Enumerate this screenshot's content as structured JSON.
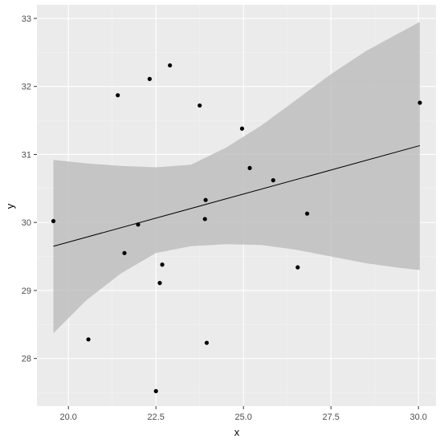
{
  "chart_data": {
    "type": "scatter",
    "title": "",
    "xlabel": "x",
    "ylabel": "y",
    "xlim": [
      19.1,
      30.5
    ],
    "ylim": [
      27.3,
      33.2
    ],
    "grid": true,
    "x_ticks": [
      20.0,
      22.5,
      25.0,
      27.5,
      30.0
    ],
    "x_tick_labels": [
      "20.0",
      "22.5",
      "25.0",
      "27.5",
      "30.0"
    ],
    "y_ticks": [
      28,
      29,
      30,
      31,
      32,
      33
    ],
    "y_tick_labels": [
      "28",
      "29",
      "30",
      "31",
      "32",
      "33"
    ],
    "points": {
      "x": [
        19.57,
        20.57,
        21.41,
        21.6,
        21.99,
        22.32,
        22.61,
        22.68,
        22.9,
        22.5,
        23.75,
        23.9,
        23.92,
        23.95,
        24.96,
        25.18,
        25.85,
        26.55,
        26.82,
        30.04
      ],
      "y": [
        30.02,
        28.28,
        31.87,
        29.55,
        29.97,
        32.11,
        29.11,
        29.38,
        32.31,
        27.52,
        31.72,
        30.05,
        30.33,
        28.23,
        31.38,
        30.8,
        30.62,
        29.34,
        30.13,
        31.76
      ]
    },
    "fit": {
      "x": [
        19.57,
        30.04
      ],
      "y": [
        29.65,
        31.13
      ]
    },
    "confidence_band": {
      "x": [
        19.57,
        20.5,
        21.5,
        22.5,
        23.5,
        24.5,
        25.5,
        26.5,
        27.5,
        28.5,
        29.5,
        30.04
      ],
      "lower": [
        28.37,
        28.85,
        29.25,
        29.55,
        29.65,
        29.68,
        29.67,
        29.6,
        29.5,
        29.4,
        29.33,
        29.3
      ],
      "upper": [
        30.92,
        30.87,
        30.83,
        30.81,
        30.85,
        31.1,
        31.42,
        31.8,
        32.18,
        32.52,
        32.8,
        32.95
      ]
    },
    "colors": {
      "panel": "#ebebeb",
      "grid_major": "#ffffff",
      "grid_minor": "#f4f4f4",
      "band": "#bebebe",
      "point": "#000000",
      "line": "#000000",
      "tick_text": "#4d4d4d",
      "axis_title": "#000000"
    }
  }
}
